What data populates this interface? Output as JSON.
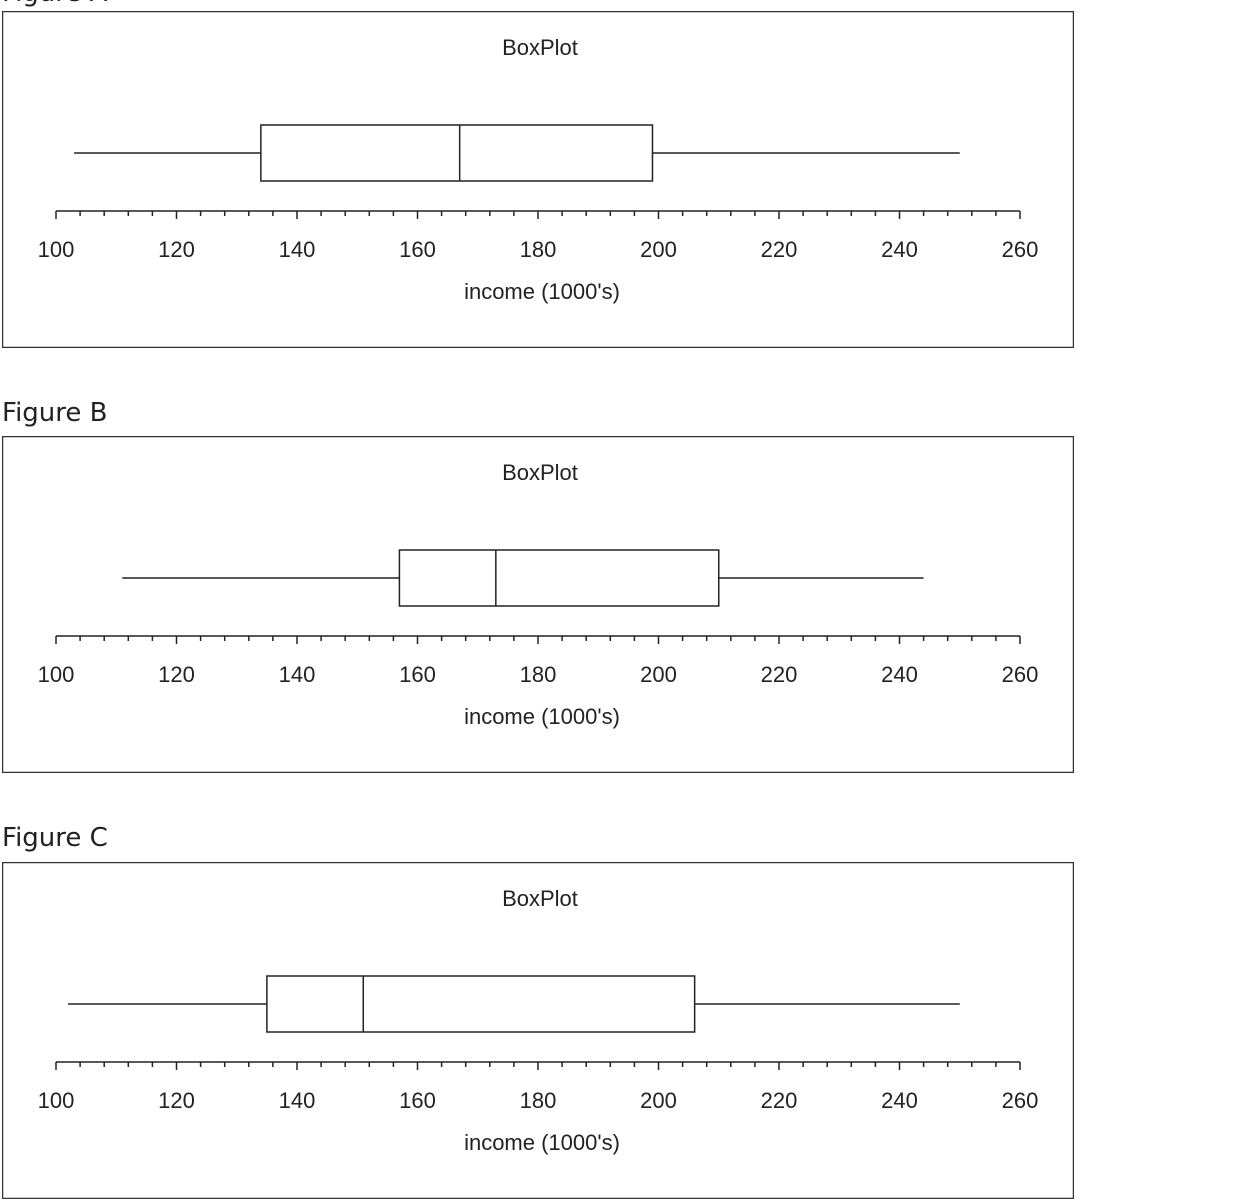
{
  "chart_data": [
    {
      "type": "boxplot",
      "figure_label": "Figure A",
      "title": "BoxPlot",
      "xlabel": "income (1000's)",
      "xlim": [
        100,
        260
      ],
      "xticks": [
        100,
        120,
        140,
        160,
        180,
        200,
        220,
        240,
        260
      ],
      "minor_tick_step": 4,
      "grid": false,
      "box": {
        "min": 103,
        "q1": 134,
        "median": 167,
        "q3": 199,
        "max": 250
      }
    },
    {
      "type": "boxplot",
      "figure_label": "Figure B",
      "title": "BoxPlot",
      "xlabel": "income (1000's)",
      "xlim": [
        100,
        260
      ],
      "xticks": [
        100,
        120,
        140,
        160,
        180,
        200,
        220,
        240,
        260
      ],
      "minor_tick_step": 4,
      "grid": false,
      "box": {
        "min": 111,
        "q1": 157,
        "median": 173,
        "q3": 210,
        "max": 244
      }
    },
    {
      "type": "boxplot",
      "figure_label": "Figure C",
      "title": "BoxPlot",
      "xlabel": "income (1000's)",
      "xlim": [
        100,
        260
      ],
      "xticks": [
        100,
        120,
        140,
        160,
        180,
        200,
        220,
        240,
        260
      ],
      "minor_tick_step": 4,
      "grid": false,
      "box": {
        "min": 102,
        "q1": 135,
        "median": 151,
        "q3": 206,
        "max": 250
      }
    }
  ]
}
